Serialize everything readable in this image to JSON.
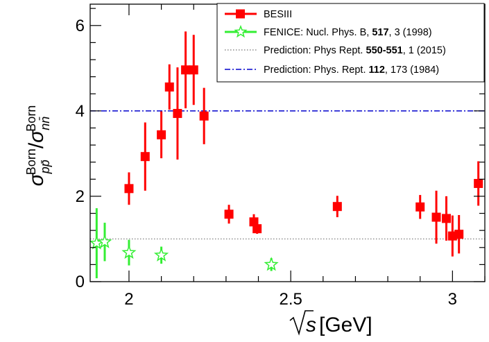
{
  "chart_data": {
    "type": "scatter",
    "xlabel": "√s [GeV]",
    "ylabel": "σ^Born_{pp̄} / σ^Born_{nn̄}",
    "xlim": [
      1.88,
      3.1
    ],
    "ylim": [
      0,
      6.5
    ],
    "x_ticks": [
      2,
      2.5,
      3
    ],
    "x_tick_labels": [
      "2",
      "2.5",
      "3"
    ],
    "y_ticks": [
      0,
      2,
      4,
      6
    ],
    "y_tick_labels": [
      "0",
      "2",
      "4",
      "6"
    ],
    "grid": false,
    "legend_position": "top-right",
    "series": [
      {
        "name": "BESIII",
        "marker": "square",
        "color": "#ff0000",
        "points": [
          {
            "x": 2.0,
            "y": 2.18,
            "err": 0.38
          },
          {
            "x": 2.05,
            "y": 2.93,
            "err": 0.8
          },
          {
            "x": 2.1,
            "y": 3.44,
            "err": 0.55
          },
          {
            "x": 2.125,
            "y": 4.56,
            "err": 0.53
          },
          {
            "x": 2.15,
            "y": 3.94,
            "err": 1.08
          },
          {
            "x": 2.175,
            "y": 4.96,
            "err": 0.9
          },
          {
            "x": 2.2,
            "y": 4.96,
            "err": 0.82
          },
          {
            "x": 2.232,
            "y": 3.88,
            "err": 0.66
          },
          {
            "x": 2.309,
            "y": 1.58,
            "err": 0.22
          },
          {
            "x": 2.386,
            "y": 1.4,
            "err": 0.18
          },
          {
            "x": 2.396,
            "y": 1.24,
            "err": 0.12
          },
          {
            "x": 2.644,
            "y": 1.76,
            "err": 0.25
          },
          {
            "x": 2.9,
            "y": 1.75,
            "err": 0.28
          },
          {
            "x": 2.95,
            "y": 1.51,
            "err": 0.62
          },
          {
            "x": 2.981,
            "y": 1.48,
            "err": 0.52
          },
          {
            "x": 3.0,
            "y": 1.07,
            "err": 0.48
          },
          {
            "x": 3.02,
            "y": 1.11,
            "err": 0.45
          },
          {
            "x": 3.08,
            "y": 2.3,
            "err": 0.52
          }
        ]
      },
      {
        "name": "FENICE: Nucl. Phys. B, 517, 3 (1998)",
        "marker": "open-star",
        "color": "#33ee33",
        "points": [
          {
            "x": 1.9,
            "y": 0.9,
            "err": 0.82
          },
          {
            "x": 1.925,
            "y": 0.93,
            "err": 0.45
          },
          {
            "x": 2.0,
            "y": 0.68,
            "err": 0.3
          },
          {
            "x": 2.1,
            "y": 0.62,
            "err": 0.2
          },
          {
            "x": 2.44,
            "y": 0.4,
            "err": 0.15
          }
        ]
      }
    ],
    "reference_lines": [
      {
        "name": "Prediction: Phys Rept. 550-551, 1 (2015)",
        "y": 1.0,
        "style": "dotted",
        "color": "#888888"
      },
      {
        "name": "Prediction: Phys. Rept. 112, 173 (1984)",
        "y": 4.0,
        "style": "dash-dot",
        "color": "#0000cc"
      }
    ],
    "legend": [
      {
        "pre": "BESIII",
        "bold": "",
        "post": ""
      },
      {
        "pre": "FENICE: Nucl. Phys. B, ",
        "bold": "517",
        "post": ", 3 (1998)"
      },
      {
        "pre": "Prediction: Phys Rept. ",
        "bold": "550-551",
        "post": ", 1 (2015)"
      },
      {
        "pre": "Prediction: Phys. Rept. ",
        "bold": "112",
        "post": ", 173 (1984)"
      }
    ]
  }
}
